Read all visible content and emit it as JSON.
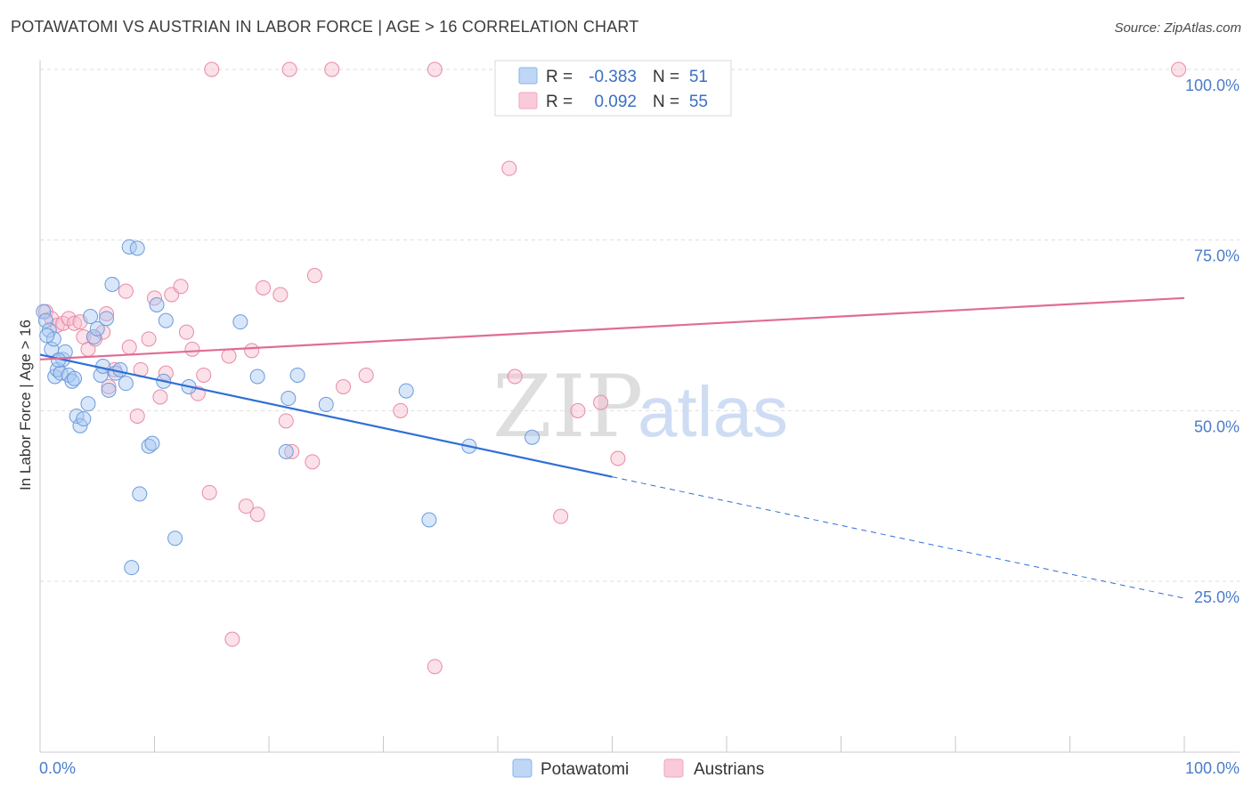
{
  "title": "POTAWATOMI VS AUSTRIAN IN LABOR FORCE | AGE > 16 CORRELATION CHART",
  "source": "Source: ZipAtlas.com",
  "chart_data": {
    "type": "scatter",
    "title": "POTAWATOMI VS AUSTRIAN IN LABOR FORCE | AGE > 16 CORRELATION CHART",
    "xlabel": "",
    "ylabel": "In Labor Force | Age > 16",
    "xlim": [
      0,
      100
    ],
    "ylim": [
      0,
      102
    ],
    "x_tick_labels": [
      "0.0%",
      "100.0%"
    ],
    "y_ticks": [
      25,
      50,
      75,
      100
    ],
    "y_tick_labels": [
      "25.0%",
      "50.0%",
      "75.0%",
      "100.0%"
    ],
    "grid": true,
    "watermark": "ZIPatlas",
    "legend": {
      "r_label": "R =",
      "n_label": "N =",
      "entries": [
        {
          "name": "Potawatomi",
          "r": "-0.383",
          "n": "51",
          "color": "#8ab4ee"
        },
        {
          "name": "Austrians",
          "r": "0.092",
          "n": "55",
          "color": "#f0a5bf"
        }
      ]
    },
    "series": [
      {
        "name": "Potawatomi",
        "fill": "#a9c8f2",
        "stroke": "#6b9bdc",
        "line_color": "#2f6fd6",
        "trend": {
          "x0": 0,
          "y0": 58.2,
          "x1": 50,
          "y1": 40.3,
          "dash_x1": 100,
          "dash_y1": 22.5
        },
        "points": [
          [
            0.3,
            64.5
          ],
          [
            0.5,
            63.2
          ],
          [
            0.8,
            61.8
          ],
          [
            1.0,
            59.0
          ],
          [
            1.2,
            60.5
          ],
          [
            1.3,
            55.0
          ],
          [
            1.5,
            56.0
          ],
          [
            1.8,
            55.5
          ],
          [
            2.0,
            57.5
          ],
          [
            2.2,
            58.6
          ],
          [
            2.5,
            55.2
          ],
          [
            2.8,
            54.3
          ],
          [
            3.0,
            54.7
          ],
          [
            3.2,
            49.2
          ],
          [
            3.5,
            47.8
          ],
          [
            3.8,
            48.8
          ],
          [
            4.2,
            51.0
          ],
          [
            4.4,
            63.8
          ],
          [
            4.7,
            60.8
          ],
          [
            5.0,
            62.0
          ],
          [
            5.3,
            55.2
          ],
          [
            5.5,
            56.5
          ],
          [
            5.8,
            63.5
          ],
          [
            6.0,
            53.0
          ],
          [
            6.3,
            68.5
          ],
          [
            6.6,
            55.5
          ],
          [
            7.0,
            56.0
          ],
          [
            7.5,
            54.0
          ],
          [
            7.8,
            74.0
          ],
          [
            8.0,
            27.0
          ],
          [
            8.5,
            73.8
          ],
          [
            8.7,
            37.8
          ],
          [
            9.5,
            44.8
          ],
          [
            9.8,
            45.2
          ],
          [
            10.2,
            65.5
          ],
          [
            10.8,
            54.3
          ],
          [
            11.0,
            63.2
          ],
          [
            11.8,
            31.3
          ],
          [
            13.0,
            53.5
          ],
          [
            17.5,
            63.0
          ],
          [
            19.0,
            55.0
          ],
          [
            21.5,
            44.0
          ],
          [
            21.7,
            51.8
          ],
          [
            22.5,
            55.2
          ],
          [
            25.0,
            50.9
          ],
          [
            32.0,
            52.9
          ],
          [
            34.0,
            34.0
          ],
          [
            37.5,
            44.8
          ],
          [
            43.0,
            46.1
          ],
          [
            0.6,
            61.0
          ],
          [
            1.6,
            57.4
          ]
        ]
      },
      {
        "name": "Austrians",
        "fill": "#f7bccd",
        "stroke": "#e88aa8",
        "line_color": "#e06c96",
        "trend": {
          "x0": 0,
          "y0": 57.5,
          "x1": 100,
          "y1": 66.5
        },
        "points": [
          [
            0.5,
            64.5
          ],
          [
            1.0,
            63.5
          ],
          [
            1.5,
            62.5
          ],
          [
            2.0,
            62.8
          ],
          [
            2.5,
            63.5
          ],
          [
            3.0,
            62.8
          ],
          [
            3.5,
            63.0
          ],
          [
            3.8,
            60.8
          ],
          [
            4.2,
            59.0
          ],
          [
            4.8,
            60.5
          ],
          [
            5.5,
            61.5
          ],
          [
            5.8,
            64.2
          ],
          [
            6.0,
            53.5
          ],
          [
            6.5,
            56.0
          ],
          [
            7.5,
            67.5
          ],
          [
            7.8,
            59.3
          ],
          [
            8.5,
            49.2
          ],
          [
            8.8,
            56.0
          ],
          [
            9.5,
            60.5
          ],
          [
            10.0,
            66.5
          ],
          [
            10.5,
            52.0
          ],
          [
            11.0,
            55.5
          ],
          [
            11.5,
            67.0
          ],
          [
            12.3,
            68.2
          ],
          [
            12.8,
            61.5
          ],
          [
            13.3,
            59.0
          ],
          [
            13.8,
            52.5
          ],
          [
            14.3,
            55.2
          ],
          [
            14.8,
            38.0
          ],
          [
            15.0,
            100
          ],
          [
            16.5,
            58.0
          ],
          [
            16.8,
            16.5
          ],
          [
            18.0,
            36.0
          ],
          [
            18.5,
            58.8
          ],
          [
            19.0,
            34.8
          ],
          [
            19.5,
            68.0
          ],
          [
            21.0,
            67.0
          ],
          [
            21.5,
            48.5
          ],
          [
            22.0,
            44.0
          ],
          [
            23.8,
            42.5
          ],
          [
            24.0,
            69.8
          ],
          [
            25.5,
            100
          ],
          [
            26.5,
            53.5
          ],
          [
            28.5,
            55.2
          ],
          [
            31.5,
            50.0
          ],
          [
            34.5,
            100
          ],
          [
            34.5,
            12.5
          ],
          [
            41.0,
            85.5
          ],
          [
            41.5,
            55.0
          ],
          [
            45.5,
            34.5
          ],
          [
            47.0,
            50.0
          ],
          [
            49.0,
            51.2
          ],
          [
            50.5,
            43.0
          ],
          [
            99.5,
            100
          ],
          [
            21.8,
            100
          ]
        ]
      }
    ]
  }
}
